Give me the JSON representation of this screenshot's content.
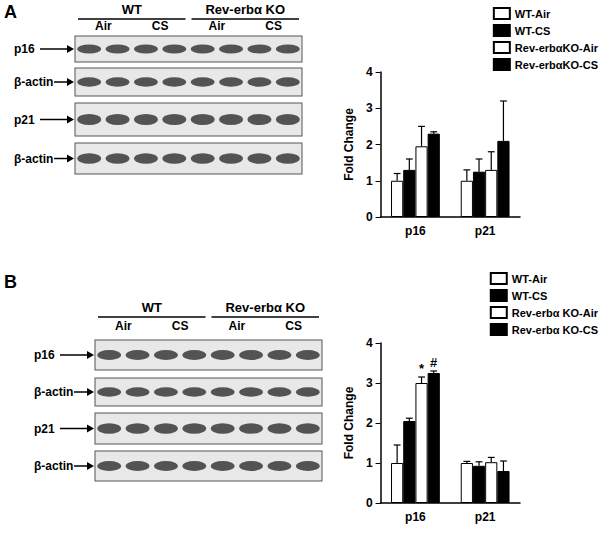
{
  "panel_labels": [
    "A",
    "B"
  ],
  "blots": [
    {
      "groups": [
        {
          "label": "WT",
          "conditions": [
            "Air",
            "CS"
          ]
        },
        {
          "label": "Rev-erbα KO",
          "conditions": [
            "Air",
            "CS"
          ]
        }
      ],
      "rows": [
        "p16",
        "β-actin",
        "p21",
        "β-actin"
      ]
    },
    {
      "groups": [
        {
          "label": "WT",
          "conditions": [
            "Air",
            "CS"
          ]
        },
        {
          "label": "Rev-erbα KO",
          "conditions": [
            "Air",
            "CS"
          ]
        }
      ],
      "rows": [
        "p16",
        "β-actin",
        "p21",
        "β-actin"
      ]
    }
  ],
  "chart_data": [
    {
      "type": "bar",
      "categories": [
        "p16",
        "p21"
      ],
      "y_label": "Fold Change",
      "ylim": [
        0,
        4
      ],
      "yticks": [
        0,
        1,
        2,
        3,
        4
      ],
      "legend": "upper right",
      "grid": false,
      "series": [
        {
          "name": "WT-Air",
          "color": "#ffffff",
          "values": [
            1.0,
            1.0
          ],
          "errors": [
            0.2,
            0.3
          ]
        },
        {
          "name": "WT-CS",
          "color": "#000000",
          "values": [
            1.3,
            1.25
          ],
          "errors": [
            0.3,
            0.35
          ]
        },
        {
          "name": "Rev-erbαKO-Air",
          "color": "#ffffff",
          "values": [
            1.95,
            1.3
          ],
          "errors": [
            0.55,
            0.5
          ]
        },
        {
          "name": "Rev-erbαKO-CS",
          "color": "#000000",
          "values": [
            2.3,
            2.1
          ],
          "errors": [
            0.05,
            1.1
          ]
        }
      ],
      "annotations": []
    },
    {
      "type": "bar",
      "categories": [
        "p16",
        "p21"
      ],
      "y_label": "Fold Change",
      "ylim": [
        0,
        4
      ],
      "yticks": [
        0,
        1,
        2,
        3,
        4
      ],
      "legend": "upper right",
      "grid": false,
      "series": [
        {
          "name": "WT-Air",
          "color": "#ffffff",
          "values": [
            1.0,
            1.0
          ],
          "errors": [
            0.45,
            0.04
          ]
        },
        {
          "name": "WT-CS",
          "color": "#000000",
          "values": [
            2.05,
            0.93
          ],
          "errors": [
            0.07,
            0.1
          ]
        },
        {
          "name": "Rev-erbα KO-Air",
          "color": "#ffffff",
          "values": [
            3.0,
            1.02
          ],
          "errors": [
            0.15,
            0.12
          ]
        },
        {
          "name": "Rev-erbα KO-CS",
          "color": "#000000",
          "values": [
            3.25,
            0.8
          ],
          "errors": [
            0.05,
            0.25
          ]
        }
      ],
      "annotations": [
        {
          "category": "p16",
          "series": "Rev-erbα KO-Air",
          "text": "*"
        },
        {
          "category": "p16",
          "series": "Rev-erbα KO-CS",
          "text": "#"
        }
      ]
    }
  ]
}
